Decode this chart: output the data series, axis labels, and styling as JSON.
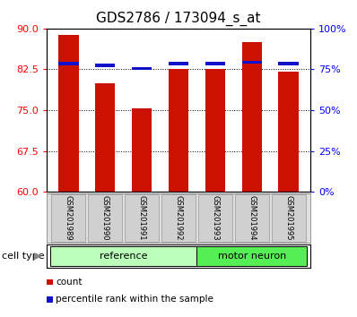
{
  "title": "GDS2786 / 173094_s_at",
  "samples": [
    "GSM201989",
    "GSM201990",
    "GSM201991",
    "GSM201992",
    "GSM201993",
    "GSM201994",
    "GSM201995"
  ],
  "bar_heights": [
    88.8,
    80.0,
    75.4,
    82.5,
    82.5,
    87.5,
    82.0
  ],
  "percentile_ranks": [
    78.5,
    77.5,
    75.5,
    78.5,
    78.5,
    79.5,
    78.5
  ],
  "bar_color": "#cc1100",
  "percentile_color": "#1111cc",
  "ylim_left": [
    60,
    90
  ],
  "ylim_right": [
    0,
    100
  ],
  "yticks_left": [
    60,
    67.5,
    75,
    82.5,
    90
  ],
  "yticks_right": [
    0,
    25,
    50,
    75,
    100
  ],
  "ytick_labels_right": [
    "0%",
    "25%",
    "50%",
    "75%",
    "100%"
  ],
  "groups": [
    {
      "label": "reference",
      "start": 0,
      "end": 4,
      "color": "#bbffbb"
    },
    {
      "label": "motor neuron",
      "start": 4,
      "end": 7,
      "color": "#55ee55"
    }
  ],
  "cell_type_label": "cell type",
  "legend_items": [
    {
      "label": "count",
      "color": "#cc1100"
    },
    {
      "label": "percentile rank within the sample",
      "color": "#1111cc"
    }
  ],
  "bar_width": 0.55,
  "title_fontsize": 11,
  "tick_fontsize": 8,
  "sample_fontsize": 6,
  "group_fontsize": 8,
  "legend_fontsize": 7.5
}
